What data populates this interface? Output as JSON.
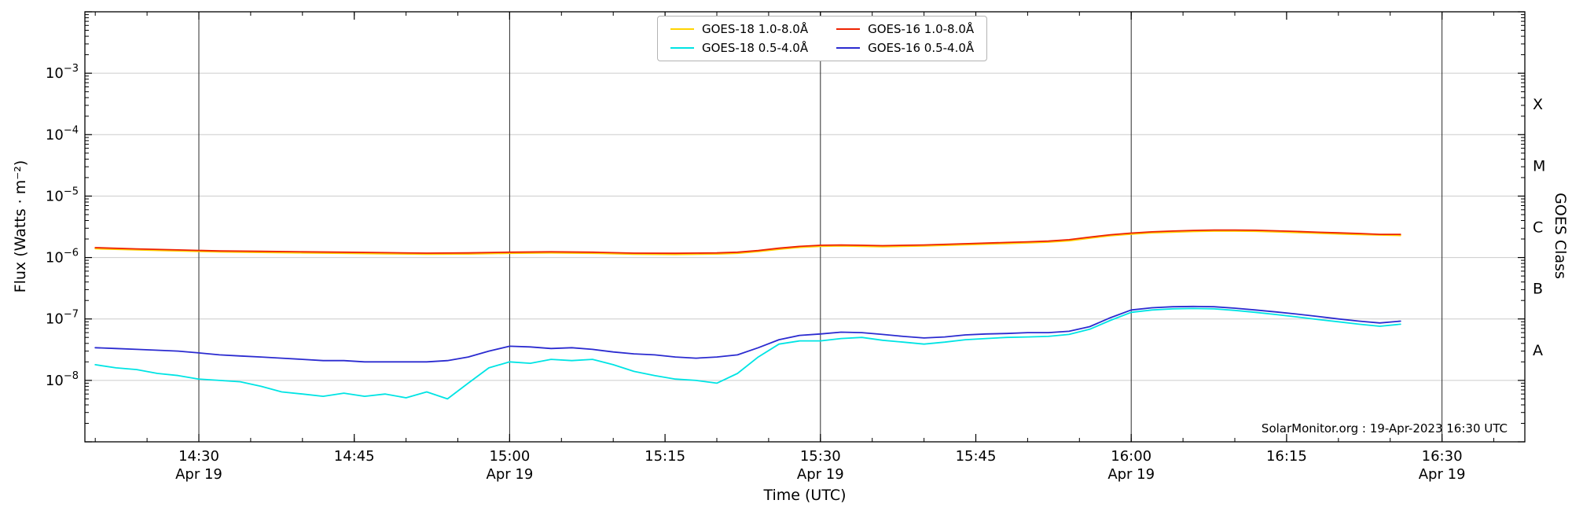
{
  "chart_data": {
    "type": "line",
    "title": "",
    "xlabel": "Time (UTC)",
    "ylabel": "Flux (Watts · m⁻²)",
    "ylabel_right": "GOES Class",
    "watermark": "SolarMonitor.org : 19-Apr-2023 16:30 UTC",
    "grid": "decade horizontal light-gray, vertical black lines at 30-min date ticks",
    "x_axis": {
      "start_min": 19,
      "end_min": 158,
      "minor_step_min": 5,
      "major_ticks": [
        {
          "min": 30,
          "label": "14:30",
          "date": "Apr 19"
        },
        {
          "min": 45,
          "label": "14:45"
        },
        {
          "min": 60,
          "label": "15:00",
          "date": "Apr 19"
        },
        {
          "min": 75,
          "label": "15:15"
        },
        {
          "min": 90,
          "label": "15:30",
          "date": "Apr 19"
        },
        {
          "min": 105,
          "label": "15:45"
        },
        {
          "min": 120,
          "label": "16:00",
          "date": "Apr 19"
        },
        {
          "min": 135,
          "label": "16:15"
        },
        {
          "min": 150,
          "label": "16:30",
          "date": "Apr 19"
        }
      ]
    },
    "y_axis": {
      "log_min": -9,
      "log_max": -2,
      "labeled_exps": [
        -3,
        -4,
        -5,
        -6,
        -7,
        -8
      ],
      "grid_exps": [
        -3,
        -4,
        -5,
        -6,
        -7,
        -8
      ]
    },
    "goes_classes": [
      {
        "label": "X",
        "flux": 0.000316
      },
      {
        "label": "M",
        "flux": 3.16e-05
      },
      {
        "label": "C",
        "flux": 3.16e-06
      },
      {
        "label": "B",
        "flux": 3.16e-07
      },
      {
        "label": "A",
        "flux": 3.16e-08
      }
    ],
    "series": [
      {
        "name": "GOES-18 1.0-8.0Å",
        "color": "#ffd300",
        "t_min": [
          20,
          24,
          28,
          32,
          36,
          40,
          44,
          48,
          52,
          56,
          60,
          64,
          68,
          72,
          76,
          80,
          82,
          84,
          86,
          88,
          90,
          92,
          94,
          96,
          100,
          104,
          108,
          110,
          112,
          114,
          116,
          118,
          120,
          122,
          124,
          126,
          128,
          130,
          132,
          134,
          136,
          138,
          140,
          142,
          144,
          146
        ],
        "flux": [
          1.39e-06,
          1.33e-06,
          1.28e-06,
          1.23e-06,
          1.21e-06,
          1.19e-06,
          1.17e-06,
          1.15e-06,
          1.13e-06,
          1.14e-06,
          1.17e-06,
          1.19e-06,
          1.17e-06,
          1.13e-06,
          1.12e-06,
          1.14e-06,
          1.17e-06,
          1.25e-06,
          1.36e-06,
          1.46e-06,
          1.52e-06,
          1.54e-06,
          1.52e-06,
          1.5e-06,
          1.54e-06,
          1.61e-06,
          1.69e-06,
          1.73e-06,
          1.78e-06,
          1.87e-06,
          2.06e-06,
          2.26e-06,
          2.4e-06,
          2.52e-06,
          2.59e-06,
          2.65e-06,
          2.69e-06,
          2.69e-06,
          2.67e-06,
          2.61e-06,
          2.55e-06,
          2.48e-06,
          2.42e-06,
          2.36e-06,
          2.32e-06,
          2.28e-06
        ]
      },
      {
        "name": "GOES-18 0.5-4.0Å",
        "color": "#00e4e4",
        "t_min": [
          20,
          22,
          24,
          26,
          28,
          30,
          32,
          34,
          36,
          38,
          40,
          42,
          44,
          46,
          48,
          50,
          52,
          54,
          56,
          58,
          60,
          62,
          64,
          66,
          68,
          70,
          72,
          74,
          76,
          78,
          80,
          82,
          84,
          86,
          88,
          90,
          92,
          94,
          96,
          98,
          100,
          102,
          104,
          106,
          108,
          110,
          112,
          114,
          116,
          118,
          120,
          122,
          124,
          126,
          128,
          130,
          132,
          134,
          136,
          138,
          140,
          142,
          144,
          146
        ],
        "flux": [
          1.8e-08,
          1.6e-08,
          1.5e-08,
          1.3e-08,
          1.2e-08,
          1.05e-08,
          1e-08,
          9.5e-09,
          8e-09,
          6.5e-09,
          6e-09,
          5.5e-09,
          6.2e-09,
          5.5e-09,
          6e-09,
          5.2e-09,
          6.5e-09,
          5e-09,
          9e-09,
          1.6e-08,
          2e-08,
          1.9e-08,
          2.2e-08,
          2.1e-08,
          2.2e-08,
          1.8e-08,
          1.4e-08,
          1.2e-08,
          1.05e-08,
          1e-08,
          9e-09,
          1.3e-08,
          2.4e-08,
          3.9e-08,
          4.4e-08,
          4.4e-08,
          4.8e-08,
          5e-08,
          4.5e-08,
          4.2e-08,
          3.9e-08,
          4.2e-08,
          4.6e-08,
          4.8e-08,
          5e-08,
          5.1e-08,
          5.2e-08,
          5.6e-08,
          6.8e-08,
          9.5e-08,
          1.28e-07,
          1.4e-07,
          1.46e-07,
          1.48e-07,
          1.46e-07,
          1.38e-07,
          1.28e-07,
          1.18e-07,
          1.08e-07,
          9.8e-08,
          9e-08,
          8.2e-08,
          7.6e-08,
          8.2e-08
        ]
      },
      {
        "name": "GOES-16 0.5-4.0Å",
        "color": "#2b2bd0",
        "t_min": [
          20,
          22,
          24,
          26,
          28,
          30,
          32,
          34,
          36,
          38,
          40,
          42,
          44,
          46,
          48,
          50,
          52,
          54,
          56,
          58,
          60,
          62,
          64,
          66,
          68,
          70,
          72,
          74,
          76,
          78,
          80,
          82,
          84,
          86,
          88,
          90,
          92,
          94,
          96,
          98,
          100,
          102,
          104,
          106,
          108,
          110,
          112,
          114,
          116,
          118,
          120,
          122,
          124,
          126,
          128,
          130,
          132,
          134,
          136,
          138,
          140,
          142,
          144,
          146
        ],
        "flux": [
          3.4e-08,
          3.3e-08,
          3.2e-08,
          3.1e-08,
          3e-08,
          2.8e-08,
          2.6e-08,
          2.5e-08,
          2.4e-08,
          2.3e-08,
          2.2e-08,
          2.1e-08,
          2.1e-08,
          2e-08,
          2e-08,
          2e-08,
          2e-08,
          2.1e-08,
          2.4e-08,
          3e-08,
          3.6e-08,
          3.5e-08,
          3.3e-08,
          3.4e-08,
          3.2e-08,
          2.9e-08,
          2.7e-08,
          2.6e-08,
          2.4e-08,
          2.3e-08,
          2.4e-08,
          2.6e-08,
          3.4e-08,
          4.6e-08,
          5.4e-08,
          5.7e-08,
          6.1e-08,
          6e-08,
          5.6e-08,
          5.2e-08,
          4.9e-08,
          5.1e-08,
          5.5e-08,
          5.7e-08,
          5.8e-08,
          6e-08,
          6e-08,
          6.3e-08,
          7.5e-08,
          1.05e-07,
          1.4e-07,
          1.52e-07,
          1.58e-07,
          1.6e-07,
          1.58e-07,
          1.5e-07,
          1.4e-07,
          1.3e-07,
          1.2e-07,
          1.1e-07,
          1e-07,
          9.2e-08,
          8.6e-08,
          9.2e-08
        ]
      },
      {
        "name": "GOES-16 1.0-8.0Å",
        "color": "#ee2200",
        "t_min": [
          20,
          24,
          28,
          32,
          36,
          40,
          44,
          48,
          52,
          56,
          60,
          64,
          68,
          72,
          76,
          80,
          82,
          84,
          86,
          88,
          90,
          92,
          94,
          96,
          100,
          104,
          108,
          110,
          112,
          114,
          116,
          118,
          120,
          122,
          124,
          126,
          128,
          130,
          132,
          134,
          136,
          138,
          140,
          142,
          144,
          146
        ],
        "flux": [
          1.45e-06,
          1.38e-06,
          1.33e-06,
          1.28e-06,
          1.26e-06,
          1.24e-06,
          1.22e-06,
          1.2e-06,
          1.18e-06,
          1.19e-06,
          1.22e-06,
          1.24e-06,
          1.22e-06,
          1.18e-06,
          1.17e-06,
          1.19e-06,
          1.22e-06,
          1.3e-06,
          1.42e-06,
          1.52e-06,
          1.58e-06,
          1.6e-06,
          1.58e-06,
          1.56e-06,
          1.6e-06,
          1.68e-06,
          1.76e-06,
          1.8e-06,
          1.85e-06,
          1.95e-06,
          2.15e-06,
          2.35e-06,
          2.5e-06,
          2.62e-06,
          2.7e-06,
          2.76e-06,
          2.8e-06,
          2.8e-06,
          2.78e-06,
          2.72e-06,
          2.66e-06,
          2.58e-06,
          2.52e-06,
          2.46e-06,
          2.38e-06,
          2.38e-06
        ]
      }
    ]
  },
  "legend": {
    "items": [
      {
        "label": "GOES-18 1.0-8.0Å",
        "color": "#ffd300"
      },
      {
        "label": "GOES-18 0.5-4.0Å",
        "color": "#00e4e4"
      },
      {
        "label": "GOES-16 1.0-8.0Å",
        "color": "#ee2200"
      },
      {
        "label": "GOES-16 0.5-4.0Å",
        "color": "#2b2bd0"
      }
    ]
  }
}
